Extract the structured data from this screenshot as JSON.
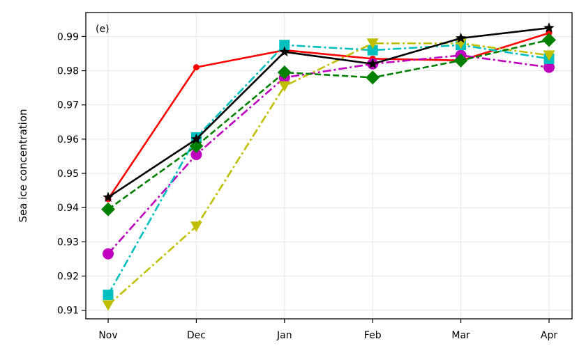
{
  "chart_data": {
    "type": "line",
    "panel_label": "(e)",
    "title": "",
    "xlabel": "",
    "ylabel": "Sea ice concentration",
    "categories": [
      "Nov",
      "Dec",
      "Jan",
      "Feb",
      "Mar",
      "Apr"
    ],
    "ylim": [
      0.9075,
      0.997
    ],
    "yticks": [
      "0.91",
      "0.92",
      "0.93",
      "0.94",
      "0.95",
      "0.96",
      "0.97",
      "0.98",
      "0.99"
    ],
    "grid": true,
    "legend": "none",
    "series": [
      {
        "color": "#ff0000",
        "dash": "solid",
        "marker": "circle-small",
        "values": [
          0.9425,
          0.981,
          0.986,
          0.9835,
          0.983,
          0.991
        ]
      },
      {
        "color": "#bf00bf",
        "dash": "dashdot",
        "marker": "circle",
        "values": [
          0.9265,
          0.9555,
          0.978,
          0.982,
          0.9845,
          0.981
        ]
      },
      {
        "color": "#00bfbf",
        "dash": "dashdot",
        "marker": "square",
        "values": [
          0.9145,
          0.9605,
          0.9875,
          0.986,
          0.9875,
          0.9835
        ]
      },
      {
        "color": "#bfbf00",
        "dash": "dashdot",
        "marker": "triangle-down",
        "values": [
          0.9115,
          0.9345,
          0.9755,
          0.988,
          0.988,
          0.9845
        ]
      },
      {
        "color": "#008000",
        "dash": "dashed",
        "marker": "diamond",
        "values": [
          0.9395,
          0.958,
          0.9795,
          0.978,
          0.983,
          0.989
        ]
      },
      {
        "color": "#000000",
        "dash": "solid",
        "marker": "star",
        "values": [
          0.943,
          0.96,
          0.9855,
          0.982,
          0.9895,
          0.9925
        ]
      }
    ]
  }
}
